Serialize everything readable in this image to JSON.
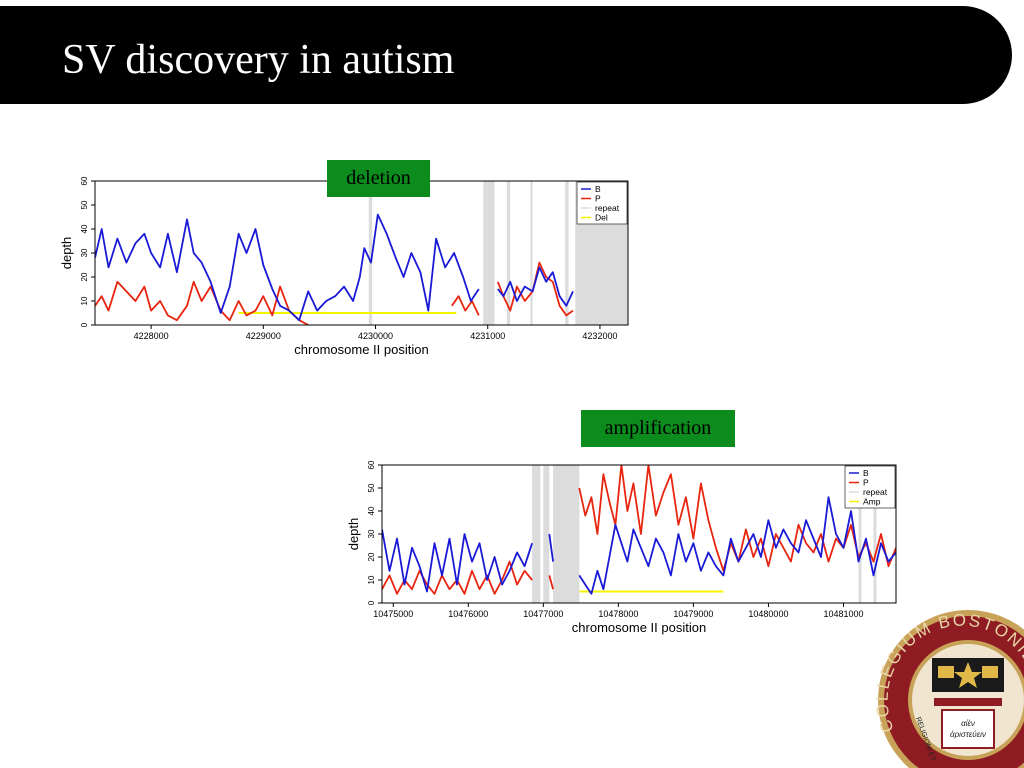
{
  "slide": {
    "title": "SV discovery in autism"
  },
  "labels": {
    "deletion": "deletion",
    "amplification": "amplification"
  },
  "seal": {
    "text": "COLLEGIUM BOSTONIENSE FUNDATUM",
    "motto_left": "RELIGIONI ET",
    "motto_book_1": "αἰὲν",
    "motto_book_2": "ἀριστεύειν"
  },
  "colors": {
    "B": "#1a1ad6",
    "P": "#e8250f",
    "repeat": "#dcdcdc",
    "sv": "#f4f400",
    "label_bg": "#0b8c1c",
    "title_bg": "#000000"
  },
  "chart_data": [
    {
      "type": "line",
      "annotation": "deletion",
      "xlabel": "chromosome II position",
      "ylabel": "depth",
      "xlim": [
        4227500,
        4232250
      ],
      "ylim": [
        0,
        60
      ],
      "xticks": [
        "4228000",
        "4229000",
        "4230000",
        "4231000",
        "4232000"
      ],
      "yticks": [
        "0",
        "10",
        "20",
        "30",
        "40",
        "50",
        "60"
      ],
      "legend_position": "top-right",
      "legend": [
        "B",
        "P",
        "repeat",
        "Del"
      ],
      "repeat_regions": [
        [
          4229940,
          4229970
        ],
        [
          4230960,
          4231060
        ],
        [
          4231170,
          4231200
        ],
        [
          4231380,
          4231400
        ],
        [
          4231690,
          4231720
        ],
        [
          4231780,
          4232250
        ]
      ],
      "sv_segment": {
        "name": "Del",
        "x": [
          4228780,
          4230720
        ],
        "y": 5
      },
      "series": [
        {
          "name": "B",
          "x": [
            4227500,
            4227560,
            4227620,
            4227700,
            4227780,
            4227860,
            4227940,
            4228000,
            4228080,
            4228150,
            4228230,
            4228320,
            4228380,
            4228450,
            4228530,
            4228620,
            4228700,
            4228780,
            4228850,
            4228930,
            4229000,
            4229080,
            4229150,
            4229230,
            4229320,
            4229400,
            4229480,
            4229560,
            4229640,
            4229720,
            4229800,
            4229860,
            4229900,
            4229960,
            4230020,
            4230100,
            4230180,
            4230250,
            4230320,
            4230400,
            4230470,
            4230540,
            4230620,
            4230700,
            4230780,
            4230850,
            4230920
          ],
          "y": [
            28,
            40,
            24,
            36,
            26,
            34,
            38,
            30,
            24,
            38,
            22,
            44,
            30,
            26,
            18,
            5,
            16,
            38,
            30,
            40,
            25,
            15,
            8,
            6,
            2,
            14,
            6,
            10,
            12,
            16,
            10,
            20,
            32,
            26,
            46,
            38,
            28,
            20,
            30,
            22,
            6,
            36,
            24,
            30,
            20,
            10,
            15
          ]
        },
        {
          "name": "B",
          "x": [
            4231090,
            4231140,
            4231200,
            4231260,
            4231330,
            4231400,
            4231460,
            4231520,
            4231580,
            4231640,
            4231700,
            4231760
          ],
          "y": [
            15,
            12,
            18,
            10,
            16,
            14,
            24,
            18,
            22,
            12,
            8,
            14
          ]
        },
        {
          "name": "P",
          "x": [
            4227500,
            4227560,
            4227620,
            4227700,
            4227780,
            4227860,
            4227940,
            4228000,
            4228080,
            4228150,
            4228230,
            4228320,
            4228380,
            4228450,
            4228530,
            4228620,
            4228700,
            4228780,
            4228850,
            4228930,
            4229000,
            4229080,
            4229150,
            4229230,
            4229320,
            4229400
          ],
          "y": [
            8,
            12,
            6,
            18,
            14,
            10,
            16,
            6,
            10,
            4,
            2,
            8,
            18,
            10,
            16,
            6,
            2,
            10,
            4,
            6,
            12,
            4,
            16,
            6,
            2,
            0
          ]
        },
        {
          "name": "P",
          "x": [
            4230680,
            4230740,
            4230800,
            4230860,
            4230920
          ],
          "y": [
            8,
            12,
            6,
            10,
            4
          ]
        },
        {
          "name": "P",
          "x": [
            4231090,
            4231140,
            4231200,
            4231260,
            4231330,
            4231400,
            4231460,
            4231520,
            4231580,
            4231640,
            4231700,
            4231760
          ],
          "y": [
            18,
            12,
            6,
            16,
            10,
            14,
            26,
            20,
            18,
            8,
            4,
            6
          ]
        }
      ]
    },
    {
      "type": "line",
      "annotation": "amplification",
      "xlabel": "chromosome II position",
      "ylabel": "depth",
      "xlim": [
        10474850,
        10481700
      ],
      "ylim": [
        0,
        60
      ],
      "xticks": [
        "10475000",
        "10476000",
        "10477000",
        "10478000",
        "10479000",
        "10480000",
        "10481000"
      ],
      "yticks": [
        "0",
        "10",
        "20",
        "30",
        "40",
        "50",
        "60"
      ],
      "legend_position": "top-right",
      "legend": [
        "B",
        "P",
        "repeat",
        "Amp"
      ],
      "repeat_regions": [
        [
          10476850,
          10476960
        ],
        [
          10477000,
          10477080
        ],
        [
          10477130,
          10477480
        ],
        [
          10481200,
          10481240
        ],
        [
          10481400,
          10481440
        ]
      ],
      "sv_segment": {
        "name": "Amp",
        "x": [
          10477480,
          10479400
        ],
        "y": 5
      },
      "series": [
        {
          "name": "B",
          "x": [
            10474850,
            10474950,
            10475050,
            10475150,
            10475250,
            10475350,
            10475450,
            10475550,
            10475650,
            10475750,
            10475850,
            10475950,
            10476050,
            10476150,
            10476250,
            10476350,
            10476450,
            10476550,
            10476650,
            10476750,
            10476850
          ],
          "y": [
            32,
            14,
            28,
            8,
            24,
            16,
            5,
            26,
            12,
            28,
            8,
            30,
            18,
            26,
            10,
            20,
            8,
            14,
            22,
            16,
            26
          ]
        },
        {
          "name": "B",
          "x": [
            10477080,
            10477130
          ],
          "y": [
            30,
            18
          ]
        },
        {
          "name": "B",
          "x": [
            10477480,
            10477560,
            10477640,
            10477720,
            10477800,
            10477880,
            10477960,
            10478040,
            10478120,
            10478200,
            10478300,
            10478400,
            10478500,
            10478600,
            10478700,
            10478800,
            10478900,
            10479000,
            10479100,
            10479200,
            10479300,
            10479400,
            10479500,
            10479600,
            10479700,
            10479800,
            10479900,
            10480000,
            10480100,
            10480200,
            10480300,
            10480400,
            10480500,
            10480600,
            10480700,
            10480800,
            10480900,
            10481000,
            10481100,
            10481200,
            10481300,
            10481400,
            10481500,
            10481600,
            10481700
          ],
          "y": [
            12,
            8,
            4,
            14,
            6,
            20,
            34,
            26,
            18,
            32,
            24,
            16,
            28,
            22,
            12,
            30,
            18,
            26,
            14,
            22,
            16,
            12,
            28,
            18,
            24,
            30,
            20,
            36,
            24,
            32,
            26,
            22,
            36,
            28,
            20,
            46,
            30,
            24,
            40,
            18,
            28,
            12,
            26,
            18,
            22
          ]
        },
        {
          "name": "P",
          "x": [
            10474850,
            10474950,
            10475050,
            10475150,
            10475250,
            10475350,
            10475450,
            10475550,
            10475650,
            10475750,
            10475850,
            10475950,
            10476050,
            10476150,
            10476250,
            10476350,
            10476450,
            10476550,
            10476650,
            10476750,
            10476850
          ],
          "y": [
            6,
            12,
            4,
            10,
            6,
            14,
            8,
            4,
            12,
            6,
            10,
            4,
            14,
            6,
            12,
            4,
            10,
            18,
            8,
            14,
            10
          ]
        },
        {
          "name": "P",
          "x": [
            10477080,
            10477130
          ],
          "y": [
            12,
            6
          ]
        },
        {
          "name": "P",
          "x": [
            10477480,
            10477560,
            10477640,
            10477720,
            10477800,
            10477880,
            10477960,
            10478040,
            10478120,
            10478200,
            10478300,
            10478400,
            10478500,
            10478600,
            10478700,
            10478800,
            10478900,
            10479000,
            10479100,
            10479200,
            10479300,
            10479400,
            10479500,
            10479600,
            10479700,
            10479800,
            10479900,
            10480000,
            10480100,
            10480200,
            10480300,
            10480400,
            10480500,
            10480600,
            10480700,
            10480800,
            10480900,
            10481000,
            10481100,
            10481200,
            10481300,
            10481400,
            10481500,
            10481600,
            10481700
          ],
          "y": [
            50,
            38,
            46,
            30,
            56,
            44,
            34,
            60,
            40,
            52,
            30,
            60,
            38,
            48,
            56,
            34,
            46,
            28,
            52,
            36,
            24,
            14,
            26,
            18,
            32,
            20,
            28,
            16,
            30,
            24,
            18,
            34,
            26,
            22,
            30,
            18,
            28,
            24,
            34,
            20,
            26,
            18,
            30,
            16,
            24
          ]
        }
      ]
    }
  ]
}
